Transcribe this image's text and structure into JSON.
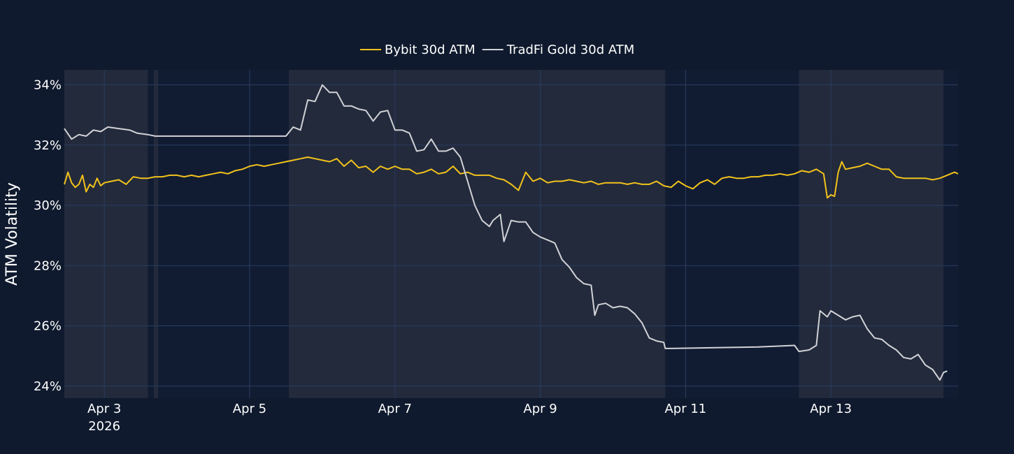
{
  "chart_data": {
    "type": "line",
    "title": "",
    "ylabel": "ATM Volatility",
    "xlabel": "",
    "ylim": [
      23.6,
      34.5
    ],
    "xlim": [
      2.45,
      14.75
    ],
    "grid": true,
    "legend_position": "top-center",
    "x_ticks": [
      {
        "value": 3,
        "label": "Apr 3",
        "sublabel": "2026"
      },
      {
        "value": 5,
        "label": "Apr 5"
      },
      {
        "value": 7,
        "label": "Apr 7"
      },
      {
        "value": 9,
        "label": "Apr 9"
      },
      {
        "value": 11,
        "label": "Apr 11"
      },
      {
        "value": 13,
        "label": "Apr 13"
      }
    ],
    "y_ticks": [
      {
        "value": 24,
        "label": "24%"
      },
      {
        "value": 26,
        "label": "26%"
      },
      {
        "value": 28,
        "label": "28%"
      },
      {
        "value": 30,
        "label": "30%"
      },
      {
        "value": 32,
        "label": "32%"
      },
      {
        "value": 34,
        "label": "34%"
      }
    ],
    "shaded_ranges": [
      [
        2.45,
        3.6
      ],
      [
        3.68,
        3.74
      ],
      [
        5.54,
        10.72
      ],
      [
        12.56,
        14.55
      ]
    ],
    "series": [
      {
        "name": "Bybit 30d ATM",
        "color": "#f2c21b",
        "points": [
          [
            2.45,
            30.7
          ],
          [
            2.5,
            31.1
          ],
          [
            2.55,
            30.75
          ],
          [
            2.6,
            30.6
          ],
          [
            2.65,
            30.7
          ],
          [
            2.7,
            31.0
          ],
          [
            2.75,
            30.45
          ],
          [
            2.8,
            30.7
          ],
          [
            2.85,
            30.6
          ],
          [
            2.9,
            30.9
          ],
          [
            2.95,
            30.65
          ],
          [
            3.0,
            30.75
          ],
          [
            3.1,
            30.8
          ],
          [
            3.2,
            30.85
          ],
          [
            3.3,
            30.7
          ],
          [
            3.4,
            30.95
          ],
          [
            3.5,
            30.9
          ],
          [
            3.6,
            30.9
          ],
          [
            3.7,
            30.95
          ],
          [
            3.8,
            30.95
          ],
          [
            3.9,
            31.0
          ],
          [
            4.0,
            31.0
          ],
          [
            4.1,
            30.95
          ],
          [
            4.2,
            31.0
          ],
          [
            4.3,
            30.95
          ],
          [
            4.4,
            31.0
          ],
          [
            4.5,
            31.05
          ],
          [
            4.6,
            31.1
          ],
          [
            4.7,
            31.05
          ],
          [
            4.8,
            31.15
          ],
          [
            4.9,
            31.2
          ],
          [
            5.0,
            31.3
          ],
          [
            5.1,
            31.35
          ],
          [
            5.2,
            31.3
          ],
          [
            5.3,
            31.35
          ],
          [
            5.4,
            31.4
          ],
          [
            5.5,
            31.45
          ],
          [
            5.6,
            31.5
          ],
          [
            5.7,
            31.55
          ],
          [
            5.8,
            31.6
          ],
          [
            5.9,
            31.55
          ],
          [
            6.0,
            31.5
          ],
          [
            6.1,
            31.45
          ],
          [
            6.2,
            31.55
          ],
          [
            6.3,
            31.3
          ],
          [
            6.4,
            31.5
          ],
          [
            6.5,
            31.25
          ],
          [
            6.6,
            31.3
          ],
          [
            6.7,
            31.1
          ],
          [
            6.8,
            31.3
          ],
          [
            6.9,
            31.2
          ],
          [
            7.0,
            31.3
          ],
          [
            7.1,
            31.2
          ],
          [
            7.2,
            31.2
          ],
          [
            7.3,
            31.05
          ],
          [
            7.4,
            31.1
          ],
          [
            7.5,
            31.2
          ],
          [
            7.6,
            31.05
          ],
          [
            7.7,
            31.1
          ],
          [
            7.8,
            31.3
          ],
          [
            7.9,
            31.05
          ],
          [
            8.0,
            31.1
          ],
          [
            8.1,
            31.0
          ],
          [
            8.2,
            31.0
          ],
          [
            8.3,
            31.0
          ],
          [
            8.4,
            30.9
          ],
          [
            8.5,
            30.85
          ],
          [
            8.6,
            30.7
          ],
          [
            8.7,
            30.5
          ],
          [
            8.8,
            31.1
          ],
          [
            8.9,
            30.8
          ],
          [
            9.0,
            30.9
          ],
          [
            9.1,
            30.75
          ],
          [
            9.2,
            30.8
          ],
          [
            9.3,
            30.8
          ],
          [
            9.4,
            30.85
          ],
          [
            9.5,
            30.8
          ],
          [
            9.6,
            30.75
          ],
          [
            9.7,
            30.8
          ],
          [
            9.8,
            30.7
          ],
          [
            9.9,
            30.75
          ],
          [
            10.0,
            30.75
          ],
          [
            10.1,
            30.75
          ],
          [
            10.2,
            30.7
          ],
          [
            10.3,
            30.75
          ],
          [
            10.4,
            30.7
          ],
          [
            10.5,
            30.7
          ],
          [
            10.6,
            30.8
          ],
          [
            10.7,
            30.65
          ],
          [
            10.8,
            30.6
          ],
          [
            10.9,
            30.8
          ],
          [
            11.0,
            30.65
          ],
          [
            11.1,
            30.55
          ],
          [
            11.2,
            30.75
          ],
          [
            11.3,
            30.85
          ],
          [
            11.4,
            30.7
          ],
          [
            11.5,
            30.9
          ],
          [
            11.6,
            30.95
          ],
          [
            11.7,
            30.9
          ],
          [
            11.8,
            30.9
          ],
          [
            11.9,
            30.95
          ],
          [
            12.0,
            30.95
          ],
          [
            12.1,
            31.0
          ],
          [
            12.2,
            31.0
          ],
          [
            12.3,
            31.05
          ],
          [
            12.4,
            31.0
          ],
          [
            12.5,
            31.05
          ],
          [
            12.6,
            31.15
          ],
          [
            12.7,
            31.1
          ],
          [
            12.8,
            31.2
          ],
          [
            12.9,
            31.05
          ],
          [
            12.95,
            30.25
          ],
          [
            13.0,
            30.35
          ],
          [
            13.05,
            30.3
          ],
          [
            13.1,
            31.1
          ],
          [
            13.15,
            31.45
          ],
          [
            13.2,
            31.2
          ],
          [
            13.3,
            31.25
          ],
          [
            13.4,
            31.3
          ],
          [
            13.5,
            31.4
          ],
          [
            13.6,
            31.3
          ],
          [
            13.7,
            31.2
          ],
          [
            13.8,
            31.2
          ],
          [
            13.9,
            30.95
          ],
          [
            14.0,
            30.9
          ],
          [
            14.1,
            30.9
          ],
          [
            14.2,
            30.9
          ],
          [
            14.3,
            30.9
          ],
          [
            14.4,
            30.85
          ],
          [
            14.5,
            30.9
          ],
          [
            14.6,
            31.0
          ],
          [
            14.7,
            31.1
          ],
          [
            14.75,
            31.05
          ]
        ]
      },
      {
        "name": "TradFi Gold 30d ATM",
        "color": "#d2d2d6",
        "points": [
          [
            2.45,
            32.55
          ],
          [
            2.55,
            32.2
          ],
          [
            2.65,
            32.35
          ],
          [
            2.75,
            32.3
          ],
          [
            2.85,
            32.5
          ],
          [
            2.95,
            32.45
          ],
          [
            3.05,
            32.6
          ],
          [
            3.2,
            32.55
          ],
          [
            3.35,
            32.5
          ],
          [
            3.45,
            32.4
          ],
          [
            3.6,
            32.35
          ],
          [
            3.7,
            32.3
          ],
          [
            4.0,
            32.3
          ],
          [
            4.5,
            32.3
          ],
          [
            5.0,
            32.3
          ],
          [
            5.5,
            32.3
          ],
          [
            5.6,
            32.6
          ],
          [
            5.7,
            32.5
          ],
          [
            5.8,
            33.5
          ],
          [
            5.9,
            33.45
          ],
          [
            6.0,
            34.0
          ],
          [
            6.1,
            33.75
          ],
          [
            6.2,
            33.75
          ],
          [
            6.3,
            33.3
          ],
          [
            6.4,
            33.3
          ],
          [
            6.5,
            33.2
          ],
          [
            6.6,
            33.15
          ],
          [
            6.7,
            32.8
          ],
          [
            6.8,
            33.1
          ],
          [
            6.9,
            33.15
          ],
          [
            7.0,
            32.5
          ],
          [
            7.1,
            32.5
          ],
          [
            7.2,
            32.4
          ],
          [
            7.3,
            31.8
          ],
          [
            7.4,
            31.85
          ],
          [
            7.5,
            32.2
          ],
          [
            7.6,
            31.8
          ],
          [
            7.7,
            31.8
          ],
          [
            7.8,
            31.9
          ],
          [
            7.9,
            31.6
          ],
          [
            8.0,
            30.8
          ],
          [
            8.1,
            30.0
          ],
          [
            8.2,
            29.5
          ],
          [
            8.3,
            29.3
          ],
          [
            8.35,
            29.5
          ],
          [
            8.45,
            29.7
          ],
          [
            8.5,
            28.8
          ],
          [
            8.6,
            29.5
          ],
          [
            8.7,
            29.45
          ],
          [
            8.8,
            29.45
          ],
          [
            8.9,
            29.1
          ],
          [
            9.0,
            28.95
          ],
          [
            9.1,
            28.85
          ],
          [
            9.2,
            28.75
          ],
          [
            9.3,
            28.2
          ],
          [
            9.4,
            27.95
          ],
          [
            9.5,
            27.6
          ],
          [
            9.6,
            27.4
          ],
          [
            9.7,
            27.35
          ],
          [
            9.75,
            26.35
          ],
          [
            9.8,
            26.7
          ],
          [
            9.9,
            26.75
          ],
          [
            10.0,
            26.6
          ],
          [
            10.1,
            26.65
          ],
          [
            10.2,
            26.6
          ],
          [
            10.3,
            26.4
          ],
          [
            10.4,
            26.1
          ],
          [
            10.5,
            25.6
          ],
          [
            10.6,
            25.5
          ],
          [
            10.7,
            25.45
          ],
          [
            10.72,
            25.25
          ],
          [
            10.8,
            25.25
          ],
          [
            11.5,
            25.28
          ],
          [
            12.0,
            25.3
          ],
          [
            12.5,
            25.35
          ],
          [
            12.56,
            25.15
          ],
          [
            12.7,
            25.2
          ],
          [
            12.8,
            25.35
          ],
          [
            12.85,
            26.5
          ],
          [
            12.95,
            26.3
          ],
          [
            13.0,
            26.5
          ],
          [
            13.1,
            26.35
          ],
          [
            13.2,
            26.2
          ],
          [
            13.3,
            26.3
          ],
          [
            13.4,
            26.35
          ],
          [
            13.5,
            25.9
          ],
          [
            13.6,
            25.6
          ],
          [
            13.7,
            25.55
          ],
          [
            13.8,
            25.35
          ],
          [
            13.9,
            25.2
          ],
          [
            14.0,
            24.95
          ],
          [
            14.1,
            24.9
          ],
          [
            14.2,
            25.05
          ],
          [
            14.3,
            24.7
          ],
          [
            14.4,
            24.55
          ],
          [
            14.5,
            24.2
          ],
          [
            14.55,
            24.45
          ],
          [
            14.6,
            24.5
          ]
        ]
      }
    ]
  }
}
